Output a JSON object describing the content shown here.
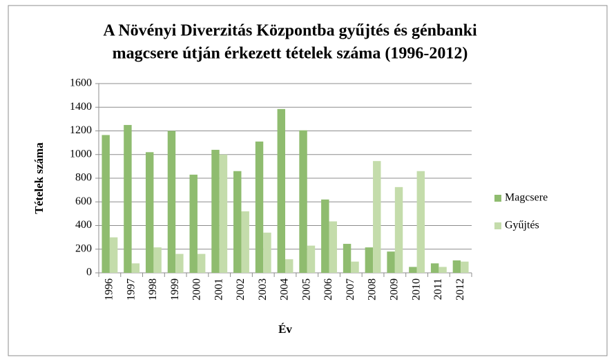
{
  "chart_data": {
    "type": "bar",
    "title": [
      "A Növényi Diverzitás Központba gyűjtés és génbanki",
      "magcsere útján érkezett tételek száma (1996-2012)"
    ],
    "x_label": "Év",
    "y_label": "Tételek száma",
    "categories": [
      "1996",
      "1997",
      "1998",
      "1999",
      "2000",
      "2001",
      "2002",
      "2003",
      "2004",
      "2005",
      "2006",
      "2007",
      "2008",
      "2009",
      "2010",
      "2011",
      "2012"
    ],
    "series": [
      {
        "name": "Magcsere",
        "color": "#8fbc6f",
        "values": [
          1165,
          1250,
          1020,
          1200,
          830,
          1040,
          860,
          1110,
          1385,
          1205,
          620,
          245,
          215,
          180,
          50,
          80,
          105
        ]
      },
      {
        "name": "Gyűjtés",
        "color": "#c4dcab",
        "values": [
          300,
          80,
          215,
          160,
          160,
          1000,
          520,
          340,
          115,
          230,
          435,
          95,
          945,
          725,
          860,
          50,
          95
        ]
      }
    ],
    "ylim": [
      0,
      1600
    ],
    "yticks": [
      0,
      200,
      400,
      600,
      800,
      1000,
      1200,
      1400,
      1600
    ],
    "grid": true,
    "legend": "right"
  }
}
